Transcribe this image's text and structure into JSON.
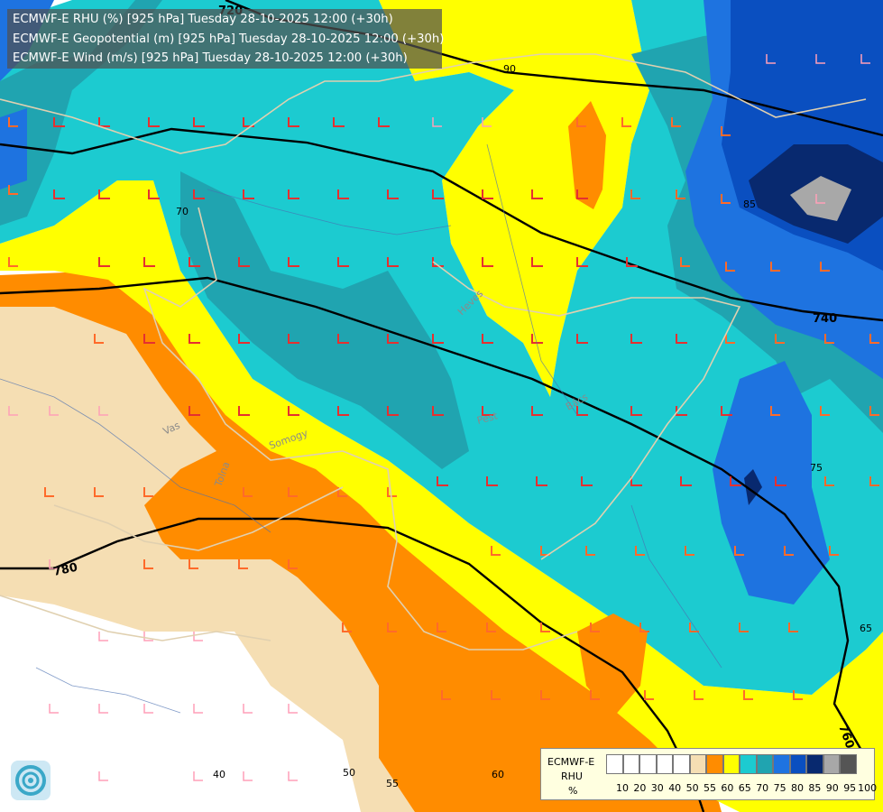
{
  "header": {
    "lines": [
      "ECMWF-E RHU (%) [925 hPa] Tuesday 28-10-2025 12:00 (+30h)",
      "ECMWF-E Geopotential (m) [925 hPa] Tuesday 28-10-2025 12:00 (+30h)",
      "ECMWF-E Wind (m/s) [925 hPa] Tuesday 28-10-2025 12:00 (+30h)"
    ]
  },
  "legend": {
    "model": "ECMWF-E",
    "variable": "RHU",
    "unit": "%",
    "ticks": [
      "10",
      "20",
      "30",
      "40",
      "50",
      "55",
      "60",
      "65",
      "70",
      "75",
      "80",
      "85",
      "90",
      "95",
      "100"
    ],
    "colors": [
      "#ffffff",
      "#ffffff",
      "#ffffff",
      "#ffffff",
      "#ffffff",
      "#f5deb3",
      "#ff8c00",
      "#ffff00",
      "#1ccbd0",
      "#20a4b0",
      "#1e73e0",
      "#0a4fc0",
      "#08296f",
      "#a8a8a8",
      "#555555"
    ]
  },
  "map_labels": {
    "geopotential": [
      "720",
      "740",
      "760",
      "780"
    ],
    "rhu": [
      "40",
      "50",
      "55",
      "60",
      "65",
      "70",
      "75",
      "85",
      "90"
    ],
    "places": [
      "Vas",
      "Somogy",
      "Tolna",
      "Pest",
      "Bács",
      "Heves"
    ]
  }
}
